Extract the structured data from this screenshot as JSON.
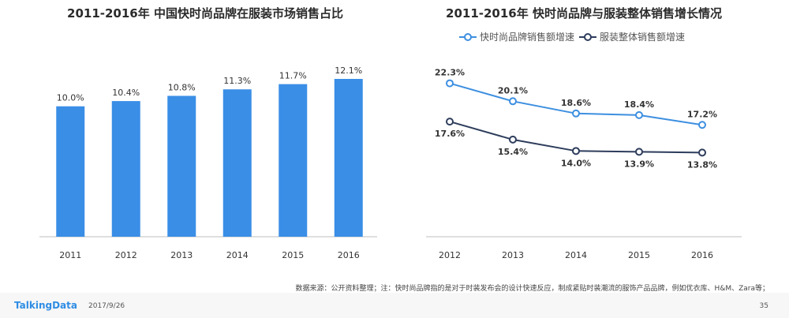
{
  "chart_data": [
    {
      "type": "bar",
      "title": "2011-2016年 中国快时尚品牌在服装市场销售占比",
      "categories": [
        "2011",
        "2012",
        "2013",
        "2014",
        "2015",
        "2016"
      ],
      "values": [
        10.0,
        10.4,
        10.8,
        11.3,
        11.7,
        12.1
      ],
      "value_labels": [
        "10.0%",
        "10.4%",
        "10.8%",
        "11.3%",
        "11.7%",
        "12.1%"
      ],
      "unit": "%",
      "ylim": [
        0,
        12.1
      ],
      "grid": false,
      "colors": {
        "bar": "#3a8ee6"
      }
    },
    {
      "type": "line",
      "title": "2011-2016年 快时尚品牌与服装整体销售增长情况",
      "categories": [
        "2012",
        "2013",
        "2014",
        "2015",
        "2016"
      ],
      "series": [
        {
          "name": "快时尚品牌销售额增速",
          "values": [
            22.3,
            20.1,
            18.6,
            18.4,
            17.2
          ],
          "labels": [
            "22.3%",
            "20.1%",
            "18.6%",
            "18.4%",
            "17.2%"
          ],
          "color": "#3d8fe0"
        },
        {
          "name": "服装整体销售额增速",
          "values": [
            17.6,
            15.4,
            14.0,
            13.9,
            13.8
          ],
          "labels": [
            "17.6%",
            "15.4%",
            "14.0%",
            "13.9%",
            "13.8%"
          ],
          "color": "#2e3d5c"
        }
      ],
      "ylim": [
        12,
        24
      ],
      "legend": "top-center",
      "grid": false
    }
  ],
  "footer": {
    "source_note": "数据来源：公开资料整理；注：快时尚品牌指的是对于时装发布会的设计快速反应，制成紧贴时装潮流的服饰产品品牌，例如优衣库、H&M、Zara等；",
    "brand": "TalkingData",
    "date": "2017/9/26",
    "page": "35"
  }
}
